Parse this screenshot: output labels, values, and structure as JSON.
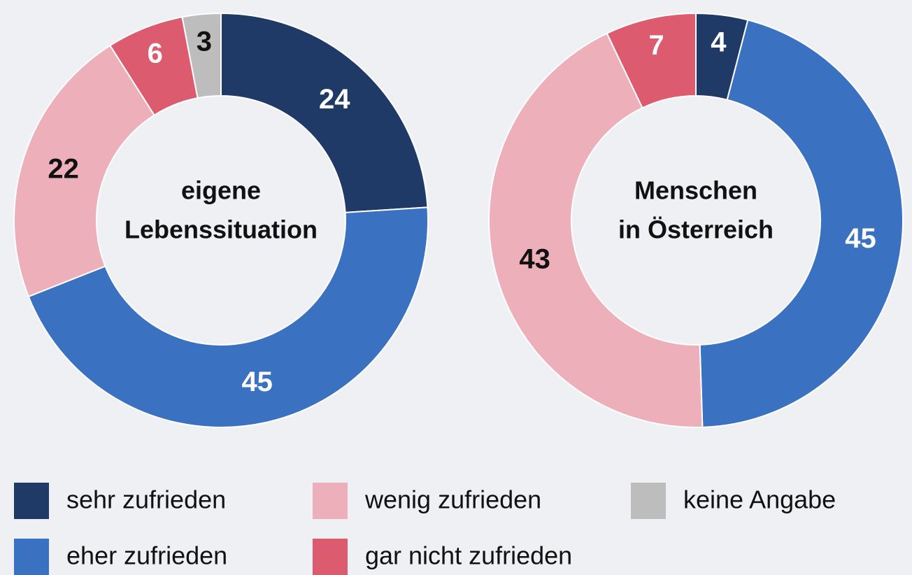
{
  "chart_data": [
    {
      "type": "donut",
      "title": [
        "eigene",
        "Lebenssituation"
      ],
      "values": [
        24,
        45,
        22,
        6,
        3
      ]
    },
    {
      "type": "donut",
      "title": [
        "Menschen",
        "in Österreich"
      ],
      "values": [
        4,
        45,
        43,
        7
      ]
    }
  ],
  "legend": [
    {
      "name": "sehr zufrieden",
      "color": "#1f3a66"
    },
    {
      "name": "eher zufrieden",
      "color": "#3b71c1"
    },
    {
      "name": "wenig zufrieden",
      "color": "#edb0bb"
    },
    {
      "name": "gar nicht zufrieden",
      "color": "#dc5b6f"
    },
    {
      "name": "keine Angabe",
      "color": "#bdbdbd"
    }
  ]
}
